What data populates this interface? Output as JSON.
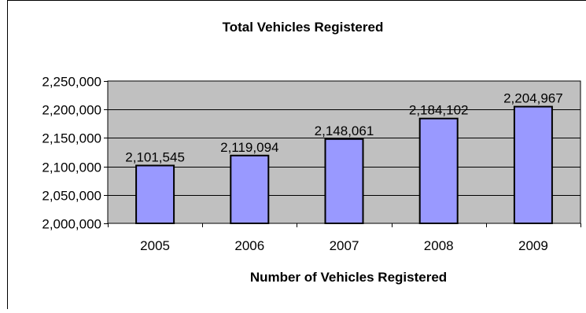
{
  "chart_data": {
    "type": "bar",
    "title": "Total Vehicles Registered",
    "xlabel": "Number of Vehicles Registered",
    "ylabel": "",
    "categories": [
      "2005",
      "2006",
      "2007",
      "2008",
      "2009"
    ],
    "values": [
      2101545,
      2119094,
      2148061,
      2184102,
      2204967
    ],
    "data_labels": [
      "2,101,545",
      "2,119,094",
      "2,148,061",
      "2,184,102",
      "2,204,967"
    ],
    "ylim": [
      2000000,
      2250000
    ],
    "yticks": [
      2000000,
      2050000,
      2100000,
      2150000,
      2200000,
      2250000
    ],
    "ytick_labels": [
      "2,000,000",
      "2,050,000",
      "2,100,000",
      "2,150,000",
      "2,200,000",
      "2,250,000"
    ],
    "grid": true,
    "legend": "none",
    "colors": {
      "bar_fill": "#9999ff",
      "bar_stroke": "#000000",
      "plot_background": "#c0c0c0",
      "gridline": "#000000",
      "frame": "#000000"
    }
  }
}
